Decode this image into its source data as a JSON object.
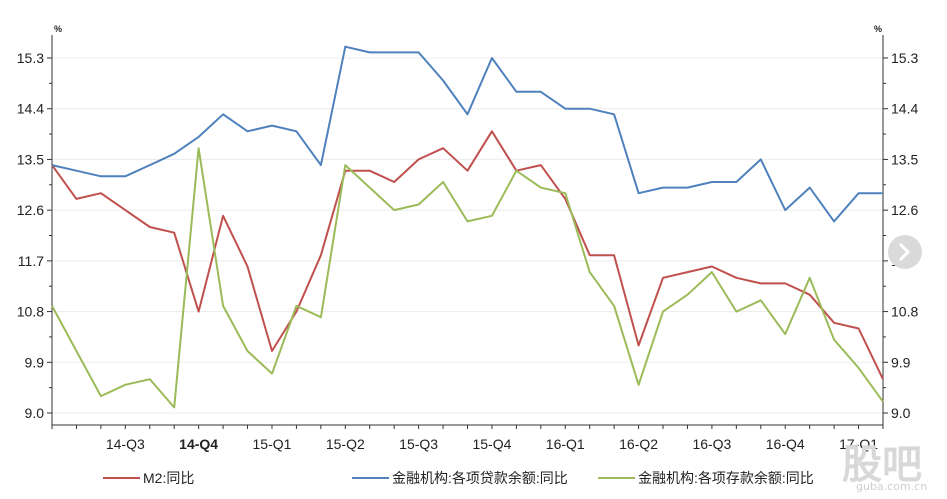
{
  "chart_data": {
    "type": "line",
    "y_unit_left": "%",
    "y_unit_right": "%",
    "ylim": [
      9.0,
      15.3
    ],
    "yticks": [
      "9.0",
      "9.9",
      "10.8",
      "11.7",
      "12.6",
      "13.5",
      "14.4",
      "15.3"
    ],
    "x_tick_labels": [
      "14-Q3",
      "14-Q4",
      "15-Q1",
      "15-Q2",
      "15-Q3",
      "15-Q4",
      "16-Q1",
      "16-Q2",
      "16-Q3",
      "16-Q4",
      "17-Q1"
    ],
    "x_tick_bold": "14-Q4",
    "x": [
      "2014-06",
      "2014-07",
      "2014-08",
      "2014-09",
      "2014-10",
      "2014-11",
      "2014-12",
      "2015-01",
      "2015-02",
      "2015-03",
      "2015-04",
      "2015-05",
      "2015-06",
      "2015-07",
      "2015-08",
      "2015-09",
      "2015-10",
      "2015-11",
      "2015-12",
      "2016-01",
      "2016-02",
      "2016-03",
      "2016-04",
      "2016-05",
      "2016-06",
      "2016-07",
      "2016-08",
      "2016-09",
      "2016-10",
      "2016-11",
      "2016-12",
      "2017-01",
      "2017-02",
      "2017-03",
      "2017-04"
    ],
    "series": [
      {
        "name": "M2:同比",
        "color": "#c0504d",
        "values": [
          13.4,
          12.8,
          12.9,
          12.6,
          12.3,
          12.2,
          10.8,
          12.5,
          11.6,
          10.1,
          10.8,
          11.8,
          13.3,
          13.3,
          13.1,
          13.5,
          13.7,
          13.3,
          14.0,
          13.3,
          13.4,
          12.8,
          11.8,
          11.8,
          10.2,
          11.4,
          11.5,
          11.6,
          11.4,
          11.3,
          11.3,
          11.1,
          10.6,
          10.5,
          9.6
        ]
      },
      {
        "name": "金融机构:各项贷款余额:同比",
        "color": "#4f81bd",
        "values": [
          13.4,
          13.3,
          13.2,
          13.2,
          13.4,
          13.6,
          13.9,
          14.3,
          14.0,
          14.1,
          14.0,
          13.4,
          15.5,
          15.4,
          15.4,
          15.4,
          14.9,
          14.3,
          15.3,
          14.7,
          14.7,
          14.4,
          14.4,
          14.3,
          12.9,
          13.0,
          13.0,
          13.1,
          13.1,
          13.5,
          12.6,
          13.0,
          12.4,
          12.9,
          12.9
        ]
      },
      {
        "name": "金融机构:各项存款余额:同比",
        "color": "#9bbb59",
        "values": [
          10.9,
          10.1,
          9.3,
          9.5,
          9.6,
          9.1,
          13.7,
          10.9,
          10.1,
          9.7,
          10.9,
          10.7,
          13.4,
          13.0,
          12.6,
          12.7,
          13.1,
          12.4,
          12.5,
          13.3,
          13.0,
          12.9,
          11.5,
          10.9,
          9.5,
          10.8,
          11.1,
          11.5,
          10.8,
          11.0,
          10.4,
          11.4,
          10.3,
          9.8,
          9.2
        ]
      }
    ],
    "legend": "bottom",
    "grid": true
  },
  "watermark": {
    "big": "股吧",
    "small": "guba.com.cn"
  },
  "colors": {
    "axis": "#333333",
    "grid": "#ececec",
    "scrollbar_knob": "#dadada",
    "watermark": "#d8d8d8"
  }
}
